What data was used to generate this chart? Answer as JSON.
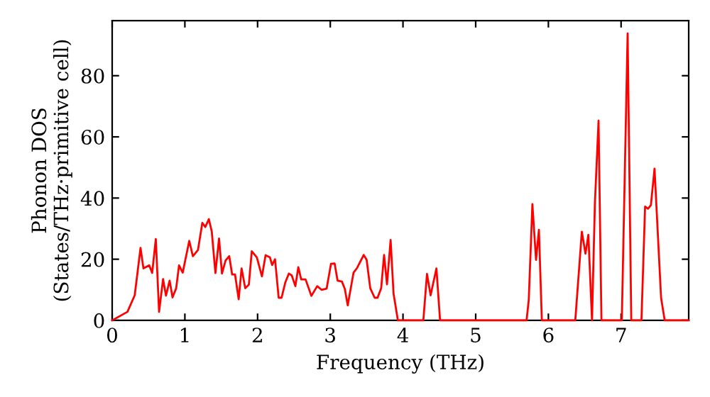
{
  "chart_data": {
    "type": "line",
    "xlabel": "Frequency (THz)",
    "ylabel": "Phonon DOS\n(States/THz·primitive cell)",
    "xlim": [
      0,
      7.93
    ],
    "ylim": [
      0,
      98
    ],
    "xticks": [
      0,
      1,
      2,
      3,
      4,
      5,
      6,
      7
    ],
    "yticks": [
      0,
      20,
      40,
      60,
      80
    ],
    "grid": false,
    "legend": false,
    "marker": "none",
    "line_style": "solid",
    "series": [
      {
        "color": "#ff0000",
        "x": [
          0,
          0.21,
          0.31,
          0.39,
          0.43,
          0.51,
          0.55,
          0.6,
          0.645,
          0.7,
          0.74,
          0.79,
          0.83,
          0.88,
          0.92,
          0.97,
          1.06,
          1.11,
          1.18,
          1.24,
          1.28,
          1.33,
          1.37,
          1.42,
          1.47,
          1.51,
          1.56,
          1.61,
          1.65,
          1.69,
          1.74,
          1.78,
          1.83,
          1.88,
          1.92,
          1.99,
          2.06,
          2.11,
          2.17,
          2.2,
          2.24,
          2.29,
          2.33,
          2.38,
          2.43,
          2.47,
          2.52,
          2.56,
          2.6,
          2.66,
          2.74,
          2.82,
          2.88,
          2.95,
          3.01,
          3.06,
          3.1,
          3.16,
          3.2,
          3.24,
          3.32,
          3.37,
          3.46,
          3.5,
          3.55,
          3.61,
          3.65,
          3.7,
          3.74,
          3.78,
          3.83,
          3.87,
          3.93,
          4.28,
          4.33,
          4.38,
          4.46,
          4.51,
          5.7,
          5.73,
          5.78,
          5.83,
          5.87,
          5.91,
          6.37,
          6.46,
          6.51,
          6.55,
          6.6,
          6.64,
          6.69,
          6.73,
          7.01,
          7.09,
          7.14,
          7.28,
          7.33,
          7.37,
          7.41,
          7.46,
          7.55,
          7.6,
          7.93
        ],
        "values": [
          0,
          2.8,
          8.2,
          23.7,
          17,
          18,
          15.5,
          26.6,
          2.8,
          13.5,
          8.1,
          13,
          7.5,
          10.5,
          18,
          15.6,
          26,
          21,
          23,
          31.9,
          30.5,
          33.1,
          29,
          15.5,
          26.8,
          15.3,
          19.6,
          21,
          15,
          15,
          6.9,
          17,
          10.5,
          11.7,
          22.6,
          20.6,
          14.4,
          21.3,
          20.6,
          18.1,
          20,
          7.4,
          7.4,
          12.3,
          15.3,
          14.7,
          11.2,
          17.4,
          13.4,
          13.4,
          8,
          11.2,
          10,
          10.4,
          18.5,
          18.6,
          13,
          12.7,
          10.3,
          4.9,
          15.6,
          17.2,
          21.4,
          19.8,
          10.5,
          7.4,
          7.4,
          10.5,
          21.4,
          11.8,
          26.3,
          8.8,
          0,
          0,
          15.2,
          8.2,
          17,
          0,
          0,
          6.7,
          38,
          19.8,
          29.6,
          0,
          0,
          29,
          21.8,
          28,
          0,
          38.4,
          65.3,
          0,
          0,
          93.8,
          0,
          0,
          37.2,
          36.5,
          37.7,
          49.6,
          7.4,
          0,
          0
        ]
      }
    ]
  }
}
